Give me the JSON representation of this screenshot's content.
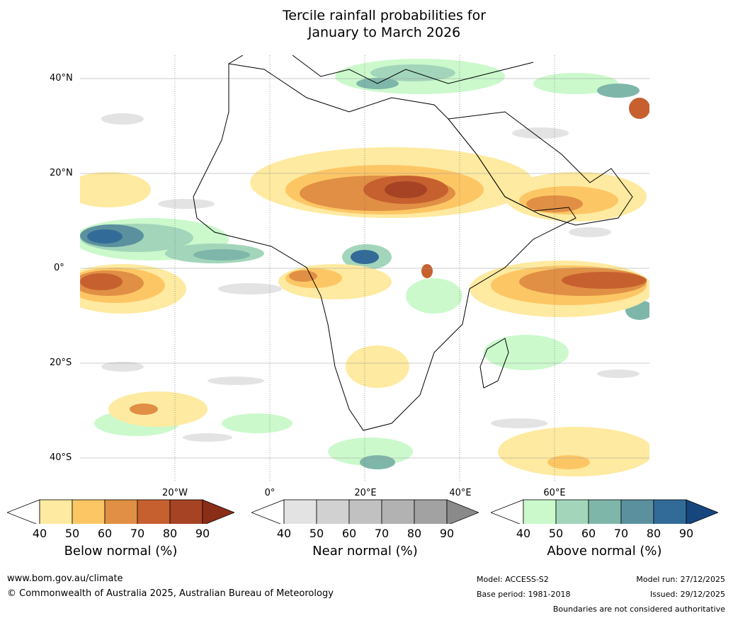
{
  "title_line1": "Tercile rainfall probabilities for",
  "title_line2": "January to March 2026",
  "lat_labels": [
    "40°N",
    "20°N",
    "0°",
    "20°S",
    "40°S"
  ],
  "lon_labels": [
    "20°W",
    "0°",
    "20°E",
    "40°E",
    "60°E"
  ],
  "colorbars": {
    "below": {
      "title": "Below normal (%)",
      "ticks": [
        "40",
        "50",
        "60",
        "70",
        "80",
        "90"
      ],
      "colors": [
        "#ffffff",
        "#feeaa0",
        "#fdc665",
        "#e08f45",
        "#c7602f",
        "#a64324",
        "#8a2e17"
      ]
    },
    "near": {
      "title": "Near normal (%)",
      "ticks": [
        "40",
        "50",
        "60",
        "70",
        "80",
        "90"
      ],
      "colors": [
        "#ffffff",
        "#e3e3e3",
        "#d1d1d1",
        "#c1c1c1",
        "#b2b2b2",
        "#a2a2a2",
        "#8a8a8a"
      ]
    },
    "above": {
      "title": "Above normal (%)",
      "ticks": [
        "40",
        "50",
        "60",
        "70",
        "80",
        "90"
      ],
      "colors": [
        "#ffffff",
        "#cbf9cc",
        "#a3d5ba",
        "#7fb6aa",
        "#5b919e",
        "#336b98",
        "#17467f"
      ]
    }
  },
  "footer": {
    "website": "www.bom.gov.au/climate",
    "copyright": "© Commonwealth of Australia 2025, Australian Bureau of Meteorology",
    "model": "Model: ACCESS-S2",
    "base_period": "Base period: 1981-2018",
    "model_run": "Model run: 27/12/2025",
    "issued": "Issued: 29/12/2025",
    "boundaries": "Boundaries are not considered authoritative"
  }
}
